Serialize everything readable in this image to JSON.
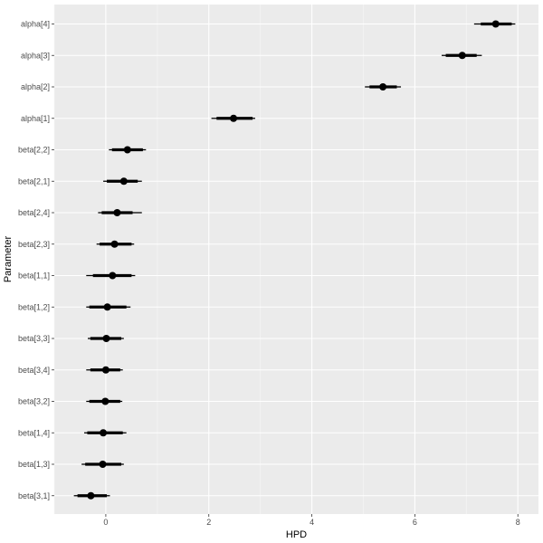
{
  "chart_data": {
    "type": "pointrange",
    "xlabel": "HPD",
    "ylabel": "Parameter",
    "xlim": [
      -1.0,
      8.4
    ],
    "x_ticks": [
      "0",
      "2",
      "4",
      "6",
      "8"
    ],
    "x_tick_values": [
      0,
      2,
      4,
      6,
      8
    ],
    "grid": true,
    "point_color": "#000000",
    "parameters": [
      {
        "label": "alpha[4]",
        "est": 7.57,
        "inner": [
          7.28,
          7.88
        ],
        "outer": [
          7.15,
          7.95
        ]
      },
      {
        "label": "alpha[3]",
        "est": 6.92,
        "inner": [
          6.6,
          7.2
        ],
        "outer": [
          6.52,
          7.3
        ]
      },
      {
        "label": "alpha[2]",
        "est": 5.38,
        "inner": [
          5.12,
          5.65
        ],
        "outer": [
          5.03,
          5.73
        ]
      },
      {
        "label": "alpha[1]",
        "est": 2.48,
        "inner": [
          2.15,
          2.85
        ],
        "outer": [
          2.05,
          2.9
        ]
      },
      {
        "label": "beta[2,2]",
        "est": 0.42,
        "inner": [
          0.12,
          0.72
        ],
        "outer": [
          0.06,
          0.78
        ]
      },
      {
        "label": "beta[2,1]",
        "est": 0.35,
        "inner": [
          0.02,
          0.62
        ],
        "outer": [
          -0.05,
          0.7
        ]
      },
      {
        "label": "beta[2,4]",
        "est": 0.22,
        "inner": [
          -0.08,
          0.52
        ],
        "outer": [
          -0.15,
          0.7
        ]
      },
      {
        "label": "beta[2,3]",
        "est": 0.17,
        "inner": [
          -0.12,
          0.5
        ],
        "outer": [
          -0.18,
          0.55
        ]
      },
      {
        "label": "beta[1,1]",
        "est": 0.13,
        "inner": [
          -0.25,
          0.5
        ],
        "outer": [
          -0.38,
          0.57
        ]
      },
      {
        "label": "beta[1,2]",
        "est": 0.03,
        "inner": [
          -0.32,
          0.4
        ],
        "outer": [
          -0.38,
          0.48
        ]
      },
      {
        "label": "beta[3,3]",
        "est": 0.01,
        "inner": [
          -0.3,
          0.3
        ],
        "outer": [
          -0.35,
          0.35
        ]
      },
      {
        "label": "beta[3,4]",
        "est": 0.0,
        "inner": [
          -0.3,
          0.28
        ],
        "outer": [
          -0.38,
          0.33
        ]
      },
      {
        "label": "beta[3,2]",
        "est": -0.01,
        "inner": [
          -0.32,
          0.28
        ],
        "outer": [
          -0.38,
          0.32
        ]
      },
      {
        "label": "beta[1,4]",
        "est": -0.05,
        "inner": [
          -0.36,
          0.33
        ],
        "outer": [
          -0.42,
          0.4
        ]
      },
      {
        "label": "beta[1,3]",
        "est": -0.06,
        "inner": [
          -0.4,
          0.3
        ],
        "outer": [
          -0.47,
          0.35
        ]
      },
      {
        "label": "beta[3,1]",
        "est": -0.29,
        "inner": [
          -0.55,
          0.02
        ],
        "outer": [
          -0.62,
          0.08
        ]
      }
    ]
  }
}
